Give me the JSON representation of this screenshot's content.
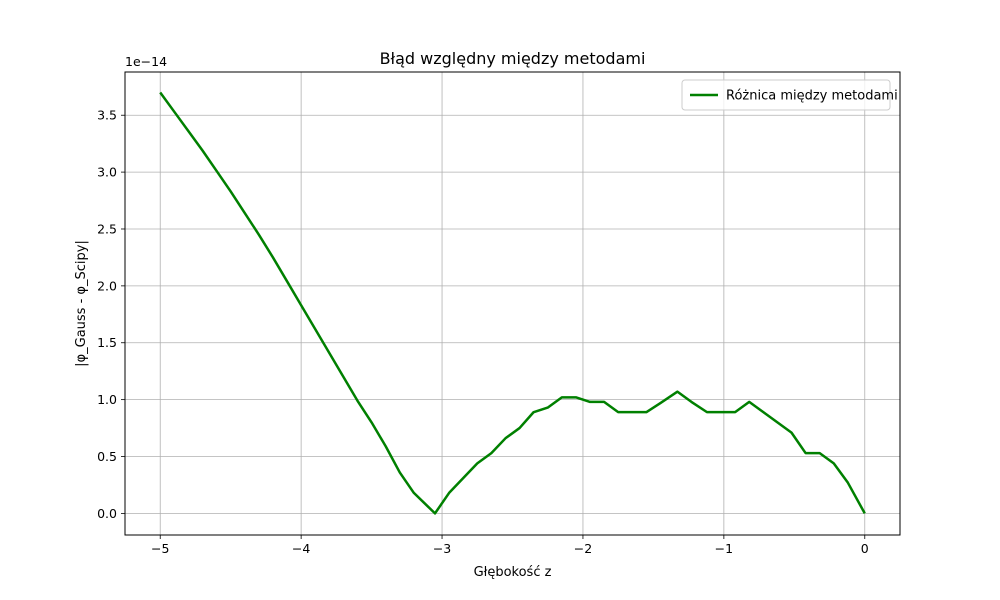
{
  "chart_data": {
    "type": "line",
    "title": "Błąd względny między metodami",
    "xlabel": "Głębokość z",
    "ylabel": "|φ_Gauss - φ_Scipy|",
    "y_offset_label": "1e−14",
    "xlim": [
      -5.25,
      0.25
    ],
    "ylim": [
      -0.19,
      3.88
    ],
    "x_ticks": [
      -5,
      -4,
      -3,
      -2,
      -1,
      0
    ],
    "x_tick_labels": [
      "−5",
      "−4",
      "−3",
      "−2",
      "−1",
      "0"
    ],
    "y_ticks": [
      0,
      0.5,
      1,
      1.5,
      2,
      2.5,
      3,
      3.5
    ],
    "y_tick_labels": [
      "0.0",
      "0.5",
      "1.0",
      "1.5",
      "2.0",
      "2.5",
      "3.0",
      "3.5"
    ],
    "grid": true,
    "legend_position": "top-right",
    "line_color": "#008000",
    "series": [
      {
        "name": "Różnica między metodami",
        "x": [
          -5.0,
          -4.9,
          -4.8,
          -4.7,
          -4.6,
          -4.5,
          -4.4,
          -4.3,
          -4.2,
          -4.1,
          -4.0,
          -3.9,
          -3.8,
          -3.7,
          -3.6,
          -3.5,
          -3.4,
          -3.3,
          -3.2,
          -3.1,
          -3.05,
          -2.95,
          -2.85,
          -2.75,
          -2.65,
          -2.55,
          -2.45,
          -2.35,
          -2.25,
          -2.15,
          -2.05,
          -1.95,
          -1.85,
          -1.75,
          -1.65,
          -1.55,
          -1.45,
          -1.33,
          -1.23,
          -1.12,
          -1.02,
          -0.92,
          -0.82,
          -0.72,
          -0.62,
          -0.52,
          -0.42,
          -0.32,
          -0.22,
          -0.12,
          0.0
        ],
        "y": [
          3.7,
          3.53,
          3.36,
          3.19,
          3.01,
          2.83,
          2.64,
          2.45,
          2.25,
          2.04,
          1.83,
          1.62,
          1.41,
          1.2,
          0.99,
          0.8,
          0.59,
          0.36,
          0.18,
          0.06,
          0.0,
          0.18,
          0.31,
          0.44,
          0.53,
          0.66,
          0.75,
          0.89,
          0.93,
          1.02,
          1.02,
          0.98,
          0.98,
          0.89,
          0.89,
          0.89,
          0.97,
          1.07,
          0.98,
          0.89,
          0.89,
          0.89,
          0.98,
          0.89,
          0.8,
          0.71,
          0.53,
          0.53,
          0.44,
          0.27,
          0.0
        ]
      }
    ]
  }
}
